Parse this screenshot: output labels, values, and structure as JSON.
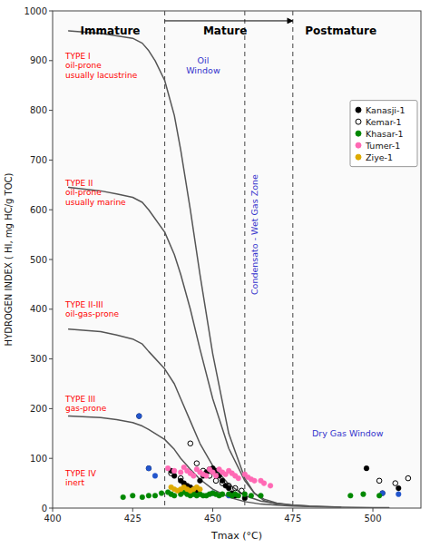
{
  "chart_data": {
    "type": "scatter",
    "xlabel": "Tmax (°C)",
    "ylabel": "HYDROGEN INDEX ( HI, mg HC/g TOC)",
    "xlim": [
      400,
      515
    ],
    "ylim": [
      0,
      1000
    ],
    "xticks": [
      400,
      425,
      450,
      475,
      500
    ],
    "yticks": [
      0,
      100,
      200,
      300,
      400,
      500,
      600,
      700,
      800,
      900,
      1000
    ],
    "grid": false,
    "legend": "upper right",
    "vlines": [
      435,
      460,
      475
    ],
    "vline_color": "#555555",
    "zone_labels": [
      {
        "text": "Immature",
        "x": 418,
        "y": 980,
        "color": "black",
        "align": "center"
      },
      {
        "text": "Mature",
        "x": 447,
        "y": 980,
        "color": "black",
        "align": "left"
      },
      {
        "text": "Postmature",
        "x": 490,
        "y": 980,
        "color": "black",
        "align": "center"
      }
    ],
    "arrows": [
      {
        "x": 435,
        "x2": 475,
        "y": 980
      }
    ],
    "type_labels": [
      {
        "text": "TYPE I\noil-prone\nusually lacustrine",
        "x": 404,
        "y": 890,
        "color": "red",
        "align": "left"
      },
      {
        "text": "TYPE II\noil-prone\nusually marine",
        "x": 404,
        "y": 635,
        "color": "red",
        "align": "left"
      },
      {
        "text": "TYPE II-III\noil-gas-prone",
        "x": 404,
        "y": 400,
        "color": "red",
        "align": "left"
      },
      {
        "text": "TYPE III\ngas-prone",
        "x": 404,
        "y": 210,
        "color": "red",
        "align": "left"
      },
      {
        "text": "TYPE IV\ninert",
        "x": 404,
        "y": 60,
        "color": "red",
        "align": "left"
      }
    ],
    "window_labels": [
      {
        "text": "Oil\nWindow",
        "x": 447,
        "y": 890,
        "color": "#3333cc",
        "align": "center"
      },
      {
        "text": "Condensato - Wet Gas Zone",
        "x": 463,
        "y": 550,
        "color": "#3333cc",
        "align": "center",
        "orientation": "vertical"
      },
      {
        "text": "Dry Gas Window",
        "x": 481,
        "y": 150,
        "color": "#3333cc",
        "align": "left"
      }
    ],
    "series": [
      {
        "type": "line",
        "color": "#555555",
        "x": [
          405,
          415,
          420,
          425,
          428,
          430,
          432,
          435,
          438,
          440,
          443,
          446,
          450,
          455,
          460,
          463,
          466,
          470
        ],
        "values": [
          960,
          955,
          950,
          945,
          935,
          920,
          900,
          860,
          790,
          720,
          600,
          470,
          310,
          150,
          60,
          30,
          15,
          8
        ]
      },
      {
        "type": "line",
        "color": "#555555",
        "x": [
          405,
          415,
          420,
          425,
          428,
          430,
          435,
          438,
          440,
          443,
          446,
          450,
          455,
          460,
          463,
          466,
          470,
          475,
          480
        ],
        "values": [
          645,
          638,
          632,
          625,
          615,
          600,
          555,
          510,
          470,
          400,
          320,
          220,
          120,
          55,
          30,
          18,
          10,
          6,
          4
        ]
      },
      {
        "type": "line",
        "color": "#555555",
        "x": [
          405,
          415,
          420,
          425,
          428,
          430,
          435,
          438,
          440,
          443,
          446,
          450,
          455,
          460,
          465,
          470,
          475,
          480,
          485,
          490
        ],
        "values": [
          360,
          355,
          348,
          340,
          330,
          315,
          280,
          250,
          220,
          175,
          130,
          85,
          48,
          25,
          14,
          9,
          6,
          4,
          3,
          2
        ]
      },
      {
        "type": "line",
        "color": "#555555",
        "x": [
          405,
          415,
          420,
          425,
          428,
          430,
          435,
          438,
          440,
          443,
          446,
          450,
          455,
          460,
          465,
          470,
          475,
          480,
          485,
          490,
          495,
          500,
          505
        ],
        "values": [
          185,
          182,
          178,
          172,
          165,
          158,
          138,
          118,
          100,
          78,
          58,
          38,
          22,
          13,
          8,
          6,
          4,
          3,
          2.5,
          2,
          1.5,
          1,
          1
        ]
      },
      {
        "name": "Kanasji-1",
        "type": "scatter",
        "marker": "circle",
        "color": "#000000",
        "x": [
          427,
          430,
          437,
          438,
          440,
          441,
          442,
          443,
          444,
          445,
          446,
          447,
          448,
          449,
          450,
          451,
          452,
          453,
          454,
          455,
          456,
          457,
          460,
          498,
          503,
          508
        ],
        "values": [
          185,
          80,
          75,
          65,
          55,
          50,
          45,
          42,
          38,
          35,
          55,
          65,
          72,
          78,
          80,
          75,
          65,
          55,
          45,
          40,
          30,
          25,
          20,
          80,
          30,
          40
        ]
      },
      {
        "type": "scatter",
        "marker": "circle",
        "color": "#2255cc",
        "x": [
          427,
          430,
          432,
          450,
          455,
          503,
          508
        ],
        "values": [
          185,
          80,
          65,
          30,
          25,
          30,
          28
        ]
      },
      {
        "name": "Kemar-1",
        "type": "scatter",
        "marker": "open",
        "color": "#000000",
        "x": [
          437,
          440,
          443,
          445,
          447,
          449,
          451,
          453,
          455,
          457,
          459,
          502,
          507,
          511
        ],
        "values": [
          70,
          60,
          130,
          90,
          75,
          65,
          55,
          50,
          45,
          40,
          35,
          55,
          50,
          60
        ]
      },
      {
        "name": "Khasar-1",
        "type": "scatter",
        "marker": "circle",
        "color": "#008800",
        "x": [
          422,
          425,
          428,
          430,
          432,
          434,
          436,
          437,
          438,
          440,
          441,
          442,
          443,
          444,
          445,
          446,
          447,
          448,
          449,
          450,
          451,
          452,
          453,
          455,
          456,
          457,
          458,
          460,
          462,
          465,
          493,
          497,
          502
        ],
        "values": [
          22,
          25,
          22,
          25,
          25,
          30,
          32,
          28,
          25,
          28,
          32,
          28,
          25,
          28,
          25,
          28,
          25,
          25,
          28,
          30,
          28,
          25,
          28,
          28,
          25,
          28,
          25,
          28,
          25,
          25,
          25,
          28,
          25
        ]
      },
      {
        "name": "Tumer-1",
        "type": "scatter",
        "marker": "circle",
        "color": "#ff69b4",
        "x": [
          436,
          438,
          440,
          441,
          442,
          443,
          444,
          445,
          446,
          447,
          448,
          449,
          450,
          451,
          452,
          453,
          454,
          455,
          456,
          457,
          458,
          460,
          461,
          462,
          463,
          465,
          466,
          468
        ],
        "values": [
          80,
          75,
          72,
          82,
          75,
          70,
          65,
          78,
          72,
          68,
          65,
          78,
          72,
          65,
          78,
          72,
          68,
          75,
          70,
          65,
          60,
          68,
          62,
          58,
          55,
          55,
          50,
          45
        ]
      },
      {
        "name": "Ziye-1",
        "type": "scatter",
        "marker": "circle",
        "color": "#ddaa00",
        "x": [
          437,
          438,
          439,
          440,
          441,
          442,
          443,
          444,
          445,
          446
        ],
        "values": [
          42,
          38,
          35,
          38,
          42,
          38,
          35,
          38,
          42,
          38
        ]
      }
    ]
  }
}
